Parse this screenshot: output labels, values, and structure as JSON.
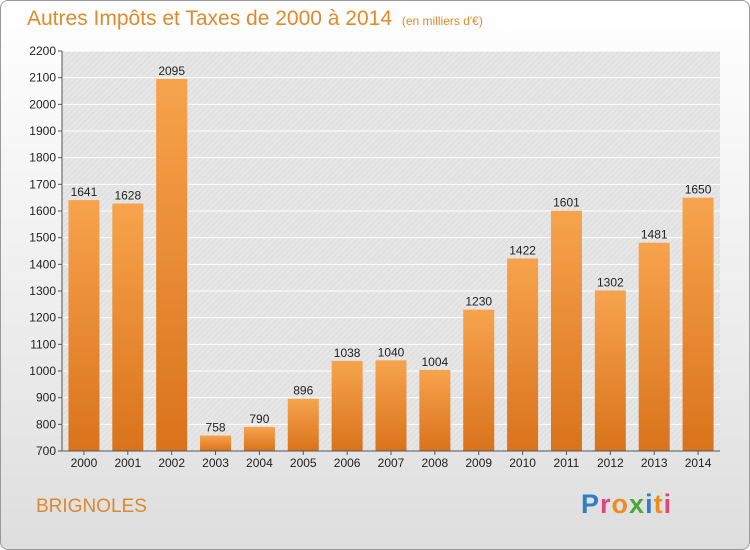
{
  "header": {
    "title": "Autres Impôts et Taxes de 2000 à 2014",
    "subtitle": "(en milliers d'€)"
  },
  "footer": {
    "place": "BRIGNOLES",
    "logo": "Proxiti"
  },
  "colors": {
    "bar_top": "#f7a34d",
    "bar_bottom": "#d9731b",
    "title": "#e08a2a",
    "plot_bg": "#e6e6e6"
  },
  "chart_data": {
    "type": "bar",
    "title": "Autres Impôts et Taxes de 2000 à 2014",
    "subtitle": "(en milliers d'€)",
    "categories": [
      "2000",
      "2001",
      "2002",
      "2003",
      "2004",
      "2005",
      "2006",
      "2007",
      "2008",
      "2009",
      "2010",
      "2011",
      "2012",
      "2013",
      "2014"
    ],
    "values": [
      1641,
      1628,
      2095,
      758,
      790,
      896,
      1038,
      1040,
      1004,
      1230,
      1422,
      1601,
      1302,
      1481,
      1650
    ],
    "ylim": [
      700,
      2200
    ],
    "yticks": [
      700,
      800,
      900,
      1000,
      1100,
      1200,
      1300,
      1400,
      1500,
      1600,
      1700,
      1800,
      1900,
      2000,
      2100,
      2200
    ],
    "grid": true,
    "xlabel": "",
    "ylabel": ""
  }
}
